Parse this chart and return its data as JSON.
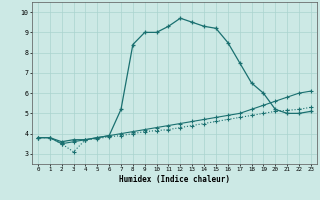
{
  "title": "",
  "xlabel": "Humidex (Indice chaleur)",
  "xlim": [
    -0.5,
    23.5
  ],
  "ylim": [
    2.5,
    10.5
  ],
  "yticks": [
    3,
    4,
    5,
    6,
    7,
    8,
    9,
    10
  ],
  "xticks": [
    0,
    1,
    2,
    3,
    4,
    5,
    6,
    7,
    8,
    9,
    10,
    11,
    12,
    13,
    14,
    15,
    16,
    17,
    18,
    19,
    20,
    21,
    22,
    23
  ],
  "bg_color": "#cce9e5",
  "grid_color": "#aad4cf",
  "line_color": "#1a7070",
  "line1_y": [
    3.8,
    3.8,
    3.6,
    3.7,
    3.7,
    3.8,
    3.9,
    5.2,
    8.4,
    9.0,
    9.0,
    9.3,
    9.7,
    9.5,
    9.3,
    9.2,
    8.5,
    7.5,
    6.5,
    6.0,
    5.2,
    5.0,
    5.0,
    5.1
  ],
  "line2_y": [
    3.8,
    3.8,
    3.5,
    3.1,
    3.7,
    3.75,
    3.85,
    3.9,
    4.0,
    4.1,
    4.15,
    4.2,
    4.3,
    4.4,
    4.5,
    4.6,
    4.7,
    4.8,
    4.9,
    5.0,
    5.1,
    5.15,
    5.2,
    5.3
  ],
  "line3_y": [
    3.8,
    3.8,
    3.5,
    3.6,
    3.7,
    3.8,
    3.9,
    4.0,
    4.1,
    4.2,
    4.3,
    4.4,
    4.5,
    4.6,
    4.7,
    4.8,
    4.9,
    5.0,
    5.2,
    5.4,
    5.6,
    5.8,
    6.0,
    6.1
  ]
}
